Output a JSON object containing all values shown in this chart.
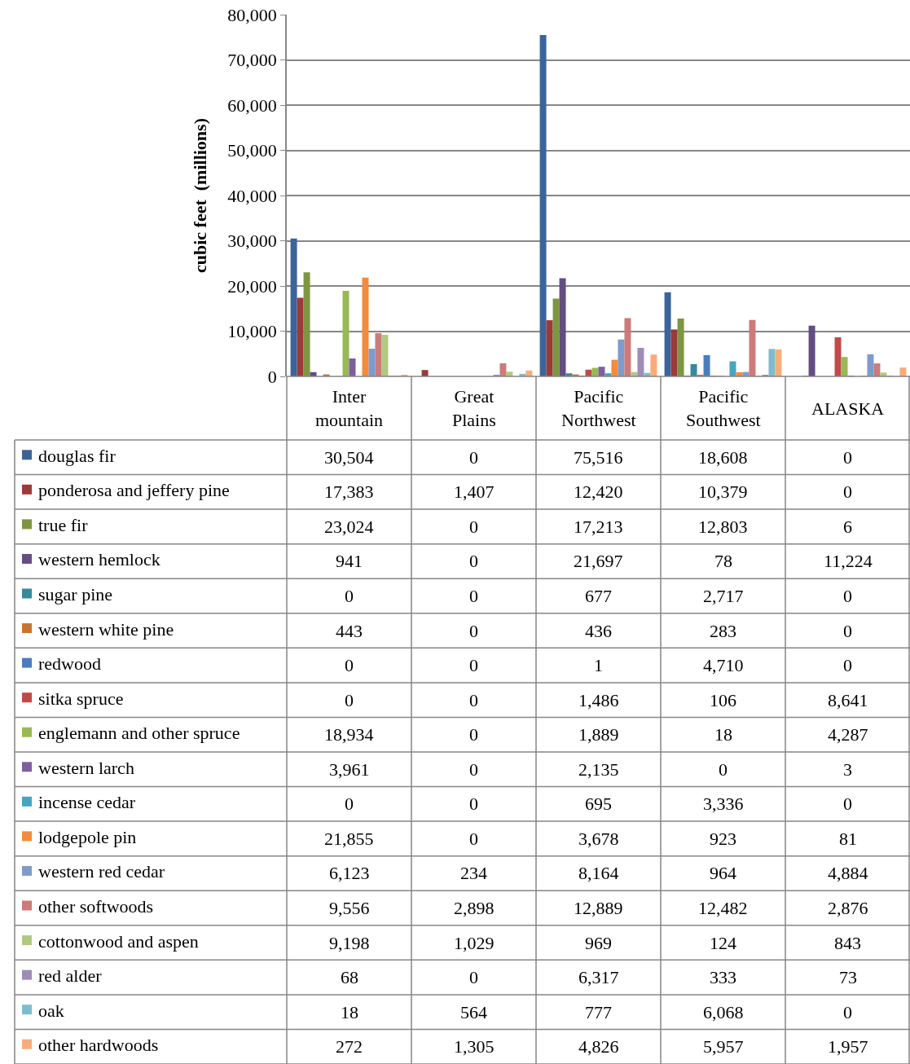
{
  "chart_data": {
    "type": "bar",
    "ylabel": "cubic feet  (millions)",
    "categories": [
      "Inter mountain",
      "Great Plains",
      "Pacific Northwest",
      "Pacific Southwest",
      "ALASKA"
    ],
    "ylim": [
      0,
      80000
    ],
    "yticks": [
      {
        "value": 0,
        "label": "0"
      },
      {
        "value": 10000,
        "label": "10,000"
      },
      {
        "value": 20000,
        "label": "20,000"
      },
      {
        "value": 30000,
        "label": "30,000"
      },
      {
        "value": 40000,
        "label": "40,000"
      },
      {
        "value": 50000,
        "label": "50,000"
      },
      {
        "value": 60000,
        "label": "60,000"
      },
      {
        "value": 70000,
        "label": "70,000"
      },
      {
        "value": 80000,
        "label": "80,000"
      }
    ],
    "grid": "y",
    "legend": "bottom",
    "series": [
      {
        "name": "douglas fir",
        "color": "#3c6499",
        "values": [
          30504,
          0,
          75516,
          18608,
          0
        ],
        "value_labels": [
          "30,504",
          "0",
          "75,516",
          "18,608",
          "0"
        ]
      },
      {
        "name": "ponderosa and jeffery pine",
        "color": "#9b3a38",
        "values": [
          17383,
          1407,
          12420,
          10379,
          0
        ],
        "value_labels": [
          "17,383",
          "1,407",
          "12,420",
          "10,379",
          "0"
        ]
      },
      {
        "name": "true fir",
        "color": "#7d9641",
        "values": [
          23024,
          0,
          17213,
          12803,
          6
        ],
        "value_labels": [
          "23,024",
          "0",
          "17,213",
          "12,803",
          "6"
        ]
      },
      {
        "name": "western hemlock",
        "color": "#634d83",
        "values": [
          941,
          0,
          21697,
          78,
          11224
        ],
        "value_labels": [
          "941",
          "0",
          "21,697",
          "78",
          "11,224"
        ]
      },
      {
        "name": "sugar pine",
        "color": "#37899c",
        "values": [
          0,
          0,
          677,
          2717,
          0
        ],
        "value_labels": [
          "0",
          "0",
          "677",
          "2,717",
          "0"
        ]
      },
      {
        "name": "western white pine",
        "color": "#c7752f",
        "values": [
          443,
          0,
          436,
          283,
          0
        ],
        "value_labels": [
          "443",
          "0",
          "436",
          "283",
          "0"
        ]
      },
      {
        "name": "redwood",
        "color": "#4a7dbf",
        "values": [
          0,
          0,
          1,
          4710,
          0
        ],
        "value_labels": [
          "0",
          "0",
          "1",
          "4,710",
          "0"
        ]
      },
      {
        "name": "sitka spruce",
        "color": "#be4b48",
        "values": [
          0,
          0,
          1486,
          106,
          8641
        ],
        "value_labels": [
          "0",
          "0",
          "1,486",
          "106",
          "8,641"
        ]
      },
      {
        "name": "englemann and other spruce",
        "color": "#98b954",
        "values": [
          18934,
          0,
          1889,
          18,
          4287
        ],
        "value_labels": [
          "18,934",
          "0",
          "1,889",
          "18",
          "4,287"
        ]
      },
      {
        "name": "western larch",
        "color": "#7d5fa0",
        "values": [
          3961,
          0,
          2135,
          0,
          3
        ],
        "value_labels": [
          "3,961",
          "0",
          "2,135",
          "0",
          "3"
        ]
      },
      {
        "name": "incense cedar",
        "color": "#46a5c1",
        "values": [
          0,
          0,
          695,
          3336,
          0
        ],
        "value_labels": [
          "0",
          "0",
          "695",
          "3,336",
          "0"
        ]
      },
      {
        "name": "lodgepole pin",
        "color": "#f08c3c",
        "values": [
          21855,
          0,
          3678,
          923,
          81
        ],
        "value_labels": [
          "21,855",
          "0",
          "3,678",
          "923",
          "81"
        ]
      },
      {
        "name": "western red cedar",
        "color": "#7e9bcb",
        "values": [
          6123,
          234,
          8164,
          964,
          4884
        ],
        "value_labels": [
          "6,123",
          "234",
          "8,164",
          "964",
          "4,884"
        ]
      },
      {
        "name": "other softwoods",
        "color": "#cc7b7a",
        "values": [
          9556,
          2898,
          12889,
          12482,
          2876
        ],
        "value_labels": [
          "9,556",
          "2,898",
          "12,889",
          "12,482",
          "2,876"
        ]
      },
      {
        "name": "cottonwood and aspen",
        "color": "#b1c97f",
        "values": [
          9198,
          1029,
          969,
          124,
          843
        ],
        "value_labels": [
          "9,198",
          "1,029",
          "969",
          "124",
          "843"
        ]
      },
      {
        "name": "red alder",
        "color": "#9f8db8",
        "values": [
          68,
          0,
          6317,
          333,
          73
        ],
        "value_labels": [
          "68",
          "0",
          "6,317",
          "333",
          "73"
        ]
      },
      {
        "name": "oak",
        "color": "#7dbcd0",
        "values": [
          18,
          564,
          777,
          6068,
          0
        ],
        "value_labels": [
          "18",
          "564",
          "777",
          "6,068",
          "0"
        ]
      },
      {
        "name": "other hardwoods",
        "color": "#f8ac7a",
        "values": [
          272,
          1305,
          4826,
          5957,
          1957
        ],
        "value_labels": [
          "272",
          "1,305",
          "4,826",
          "5,957",
          "1,957"
        ]
      }
    ]
  }
}
